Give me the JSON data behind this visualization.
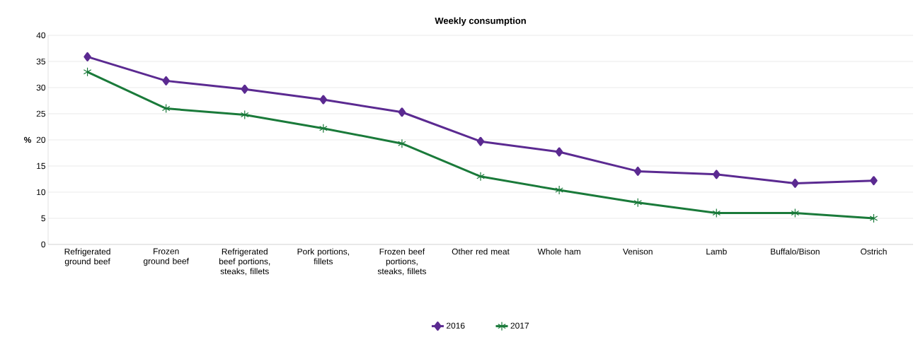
{
  "chart_data": {
    "type": "line",
    "title": "Weekly consumption",
    "ylabel": "%",
    "categories": [
      "Refrigerated ground beef",
      "Frozen ground beef",
      "Refrigerated beef portions, steaks, fillets",
      "Pork portions, fillets",
      "Frozen beef portions, steaks, fillets",
      "Other red meat",
      "Whole ham",
      "Venison",
      "Lamb",
      "Buffalo/Bison",
      "Ostrich"
    ],
    "series": [
      {
        "name": "2016",
        "color": "#5b2a91",
        "marker": "diamond",
        "values": [
          35.9,
          31.3,
          29.7,
          27.7,
          25.3,
          19.7,
          17.7,
          14.0,
          13.4,
          11.7,
          12.2
        ]
      },
      {
        "name": "2017",
        "color": "#1a7a3a",
        "marker": "cross",
        "values": [
          33.0,
          26.0,
          24.8,
          22.2,
          19.3,
          13.0,
          10.4,
          8.0,
          6.0,
          6.0,
          5.0
        ]
      }
    ],
    "ylim": [
      0,
      40
    ],
    "yticks": [
      0,
      5,
      10,
      15,
      20,
      25,
      30,
      35,
      40
    ],
    "grid": "y",
    "legend": "bottom",
    "line_style": "solid"
  }
}
